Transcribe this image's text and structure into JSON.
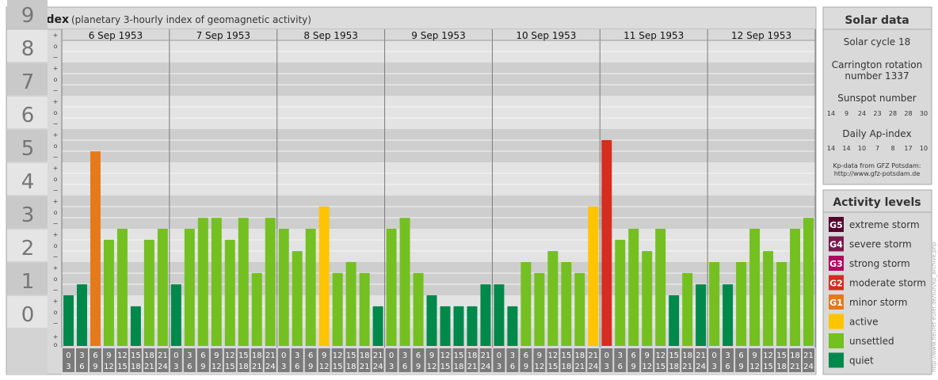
{
  "header": {
    "title": "Kp-index",
    "subtitle": "(planetary 3-hourly index of geomagnetic activity)"
  },
  "chart_data": {
    "type": "bar",
    "days": [
      "6 Sep 1953",
      "7 Sep 1953",
      "8 Sep 1953",
      "9 Sep 1953",
      "10 Sep 1953",
      "11 Sep 1953",
      "12 Sep 1953"
    ],
    "interval_labels": [
      [
        "0",
        "3"
      ],
      [
        "3",
        "6"
      ],
      [
        "6",
        "9"
      ],
      [
        "9",
        "12"
      ],
      [
        "12",
        "15"
      ],
      [
        "15",
        "18"
      ],
      [
        "18",
        "21"
      ],
      [
        "21",
        "24"
      ]
    ],
    "y_ticks": [
      "0",
      "1",
      "2",
      "3",
      "4",
      "5",
      "6",
      "7",
      "8",
      "9"
    ],
    "sub_ticks": [
      "−",
      "o",
      "+"
    ],
    "ylim": [
      0,
      9
    ],
    "values": [
      1.0,
      1.33,
      5.33,
      2.67,
      3.0,
      0.67,
      2.67,
      3.0,
      1.33,
      3.0,
      3.33,
      3.33,
      2.67,
      3.33,
      1.67,
      3.33,
      3.0,
      2.33,
      3.0,
      3.67,
      1.67,
      2.0,
      1.67,
      0.67,
      3.0,
      3.33,
      1.67,
      1.0,
      0.67,
      0.67,
      0.67,
      1.33,
      1.33,
      0.67,
      2.0,
      1.67,
      2.33,
      2.0,
      1.67,
      3.67,
      5.67,
      2.67,
      3.0,
      2.33,
      3.0,
      1.0,
      1.67,
      1.33,
      2.0,
      1.33,
      2.0,
      3.0,
      2.33,
      2.0,
      3.0,
      3.33
    ],
    "level_colors": {
      "quiet": "#00894b",
      "unsettled": "#74c020",
      "active": "#ffc400",
      "G1": "#e57a1a",
      "G2": "#d52d1e",
      "G3": "#b0075f",
      "G4": "#781a4c",
      "G5": "#560330"
    }
  },
  "solar": {
    "title": "Solar data",
    "cycle": "Solar cycle 18",
    "carrington": "Carrington rotation number 1337",
    "sunspot_title": "Sunspot number",
    "sunspot_values": [
      "14",
      "9",
      "24",
      "23",
      "28",
      "28",
      "30"
    ],
    "ap_title": "Daily Ap-index",
    "ap_values": [
      "14",
      "14",
      "10",
      "7",
      "8",
      "17",
      "10"
    ],
    "source_line1": "Kp-data from GFZ Potsdam:",
    "source_line2": "http://www.gfz-potsdam.de"
  },
  "activity": {
    "title": "Activity levels",
    "items": [
      {
        "badge": "G5",
        "label": "extreme storm",
        "color": "#560330"
      },
      {
        "badge": "G4",
        "label": "severe storm",
        "color": "#781a4c"
      },
      {
        "badge": "G3",
        "label": "strong storm",
        "color": "#b0075f"
      },
      {
        "badge": "G2",
        "label": "moderate storm",
        "color": "#d52d1e"
      },
      {
        "badge": "G1",
        "label": "minor storm",
        "color": "#e57a1a"
      },
      {
        "badge": "",
        "label": "active",
        "color": "#ffc400"
      },
      {
        "badge": "",
        "label": "unsettled",
        "color": "#74c020"
      },
      {
        "badge": "",
        "label": "quiet",
        "color": "#00894b"
      }
    ]
  },
  "watermark": "http://www.fleuret-euler.de/sun/kp_archive.php"
}
